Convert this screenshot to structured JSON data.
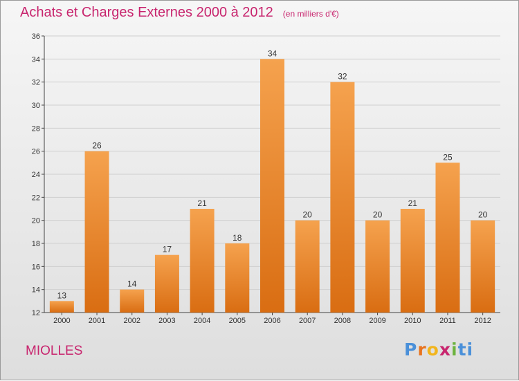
{
  "header": {
    "title": "Achats et Charges Externes 2000 à 2012",
    "unit": "(en milliers d'€)"
  },
  "footer": {
    "commune": "MIOLLES",
    "logo": [
      "P",
      "r",
      "o",
      "x",
      "i",
      "ti"
    ]
  },
  "colors": {
    "accent": "#c8256e",
    "bar_top": "#f5a24e",
    "bar_bottom": "#d96d12",
    "grid": "#cfcfcf"
  },
  "chart_data": {
    "type": "bar",
    "title": "Achats et Charges Externes 2000 à 2012",
    "subtitle": "(en milliers d'€)",
    "categories": [
      "2000",
      "2001",
      "2002",
      "2003",
      "2004",
      "2005",
      "2006",
      "2007",
      "2008",
      "2009",
      "2010",
      "2011",
      "2012"
    ],
    "values": [
      13,
      26,
      14,
      17,
      21,
      18,
      34,
      20,
      32,
      20,
      21,
      25,
      20
    ],
    "ylim": [
      12,
      36
    ],
    "yticks": [
      12,
      14,
      16,
      18,
      20,
      22,
      24,
      26,
      28,
      30,
      32,
      34,
      36
    ],
    "grid": true,
    "legend": "none"
  }
}
